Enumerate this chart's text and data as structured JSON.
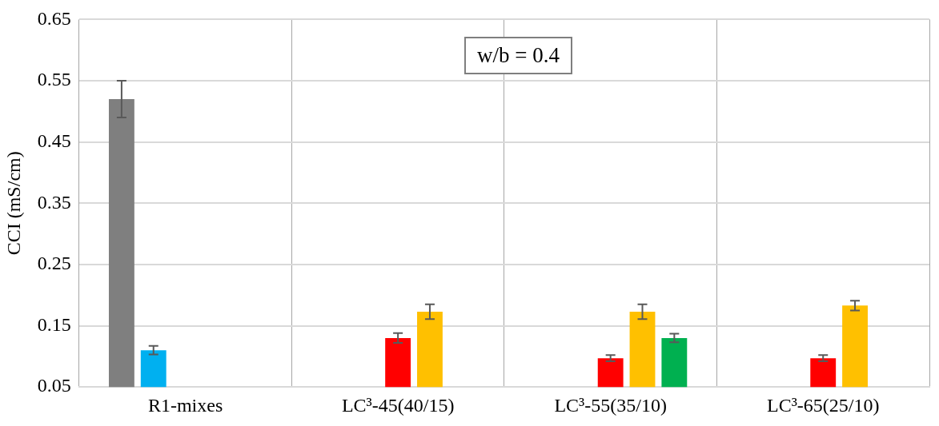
{
  "chart_data": {
    "type": "bar",
    "ylabel": "CCI (mS/cm)",
    "categories": [
      "R1-mixes",
      "LC³-45(40/15)",
      "LC³-55(35/10)",
      "LC³-65(25/10)"
    ],
    "series": [
      {
        "color": "#7f7f7f",
        "values": [
          0.52,
          null,
          null,
          null
        ],
        "errors": [
          0.03,
          null,
          null,
          null
        ]
      },
      {
        "color": "#00b0f0",
        "values": [
          0.11,
          null,
          null,
          null
        ],
        "errors": [
          0.007,
          null,
          null,
          null
        ]
      },
      {
        "color": "#ff0000",
        "values": [
          null,
          0.13,
          0.097,
          0.097
        ],
        "errors": [
          null,
          0.008,
          0.005,
          0.005
        ]
      },
      {
        "color": "#ffc000",
        "values": [
          null,
          0.173,
          0.173,
          0.183
        ],
        "errors": [
          null,
          0.012,
          0.012,
          0.008
        ]
      },
      {
        "color": "#00b050",
        "values": [
          null,
          null,
          0.13,
          null
        ],
        "errors": [
          null,
          null,
          0.007,
          null
        ]
      }
    ],
    "ylim": [
      0.05,
      0.65
    ],
    "yticks": [
      0.05,
      0.15,
      0.25,
      0.35,
      0.45,
      0.55,
      0.65
    ],
    "grid": true,
    "legend": false,
    "annotations": [
      "w/b = 0.4"
    ]
  }
}
